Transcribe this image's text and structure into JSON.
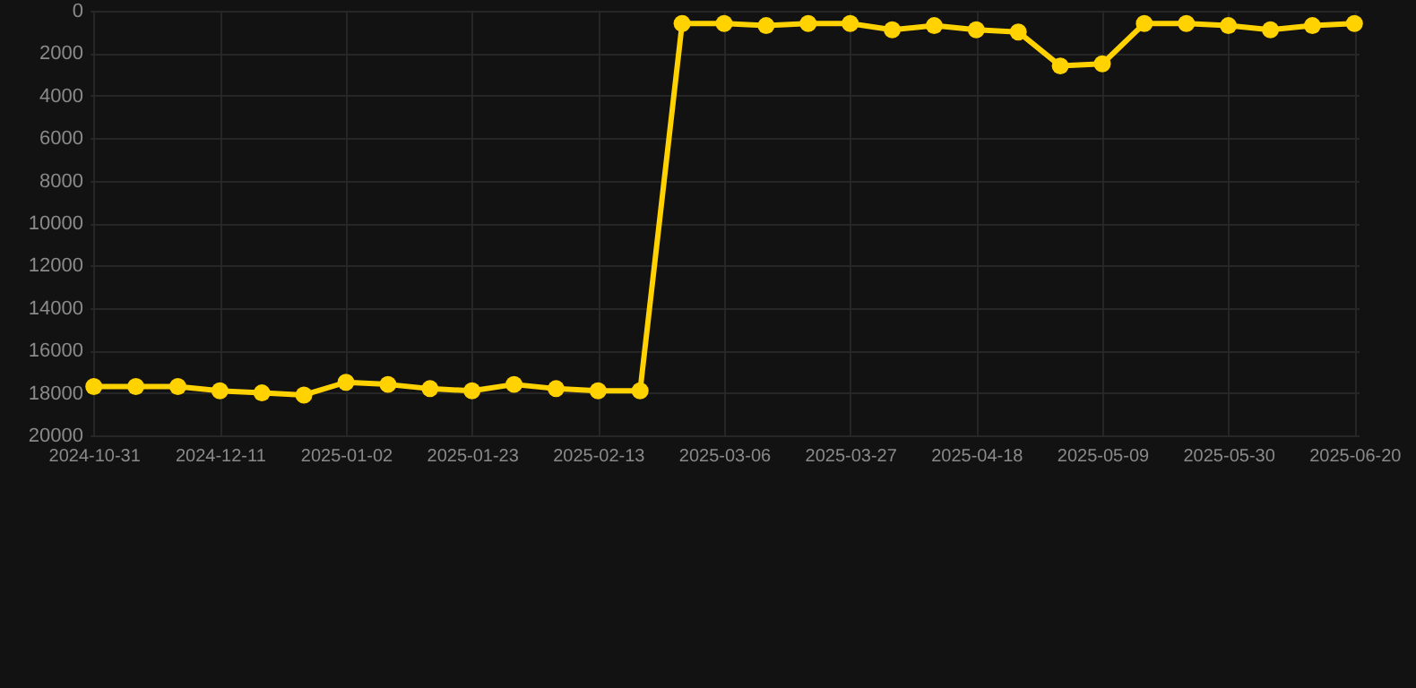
{
  "chart_data": {
    "type": "line",
    "categories": [
      "2024-10-31",
      null,
      null,
      "2024-12-11",
      null,
      null,
      "2025-01-02",
      null,
      null,
      "2025-01-23",
      null,
      null,
      "2025-02-13",
      null,
      null,
      "2025-03-06",
      null,
      null,
      "2025-03-27",
      null,
      null,
      "2025-04-18",
      null,
      null,
      "2025-05-09",
      null,
      null,
      "2025-05-30",
      null,
      null,
      "2025-06-20"
    ],
    "series": [
      {
        "color": "#ffd200",
        "values": [
          17700,
          17700,
          17700,
          17900,
          18000,
          18100,
          17500,
          17600,
          17800,
          17900,
          17600,
          17800,
          17900,
          17900,
          600,
          600,
          700,
          600,
          600,
          900,
          700,
          900,
          1000,
          2600,
          2500,
          600,
          600,
          700,
          900,
          700,
          600
        ]
      }
    ],
    "ylim": [
      20000,
      0
    ],
    "yticks": [
      0,
      2000,
      4000,
      6000,
      8000,
      10000,
      12000,
      14000,
      16000,
      18000,
      20000
    ],
    "grid": true,
    "marker": "circle",
    "line_style": "solid"
  }
}
